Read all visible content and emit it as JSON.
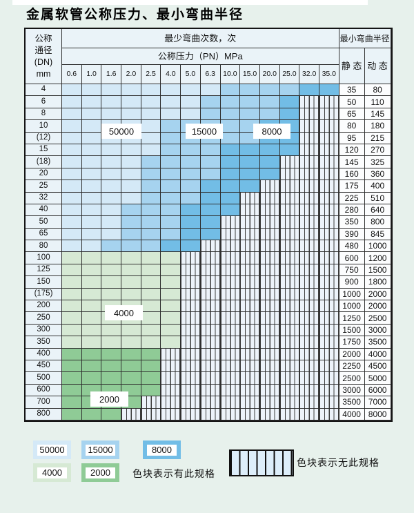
{
  "page": {
    "title": "金属软管公称压力、最小弯曲半径"
  },
  "colors": {
    "page_bg": "#e7f1ec",
    "header_bg": "#eaf3f8",
    "value_bg": "#fcfdfe",
    "border": "#2e2e2e",
    "hatch_bg": "#edf3fa",
    "bands": {
      "50000": "#d4e9f7",
      "15000": "#a6d3ef",
      "8000": "#72bde6",
      "4000": "#d6e9d4",
      "2000": "#8fcb96"
    }
  },
  "table": {
    "header": {
      "dn_lines": [
        "公称",
        "通径",
        "(DN)",
        "mm"
      ],
      "cycles_label": "最少弯曲次数，次",
      "pressure_label": "公称压力（PN）MPa",
      "radius_label": "最小弯曲半径",
      "static_label": "静 态",
      "dynamic_label": "动 态"
    }
  },
  "overlay_labels": {
    "b50000": "50000",
    "b15000": "15000",
    "b8000": "8000",
    "g4000": "4000",
    "g2000": "2000"
  },
  "legend": {
    "items": [
      {
        "label": "50000",
        "color": "#d4e9f7"
      },
      {
        "label": "15000",
        "color": "#a6d3ef"
      },
      {
        "label": "8000",
        "color": "#72bde6"
      },
      {
        "label": "4000",
        "color": "#d6e9d4"
      },
      {
        "label": "2000",
        "color": "#8fcb96"
      }
    ],
    "has_spec_text": "色块表示有此规格",
    "no_spec_text": "色块表示无此规格"
  },
  "chart_data": {
    "type": "table",
    "title": "金属软管公称压力、最小弯曲半径",
    "pressure_columns_MPa": [
      "0.6",
      "1.0",
      "1.6",
      "2.0",
      "2.5",
      "4.0",
      "5.0",
      "6.3",
      "10.0",
      "15.0",
      "20.0",
      "25.0",
      "32.0",
      "35.0"
    ],
    "cell_values_meaning": "minimum bend cycles spec per pressure column; none = 无此规格",
    "rows": [
      {
        "dn": "4",
        "cycles": [
          "50000",
          "50000",
          "50000",
          "50000",
          "50000",
          "50000",
          "50000",
          "50000",
          "15000",
          "15000",
          "15000",
          "15000",
          "8000",
          "8000"
        ],
        "static": "35",
        "dynamic": "80"
      },
      {
        "dn": "6",
        "cycles": [
          "50000",
          "50000",
          "50000",
          "50000",
          "50000",
          "50000",
          "50000",
          "15000",
          "15000",
          "15000",
          "15000",
          "8000",
          "none",
          "none"
        ],
        "static": "50",
        "dynamic": "110"
      },
      {
        "dn": "8",
        "cycles": [
          "50000",
          "50000",
          "50000",
          "50000",
          "50000",
          "50000",
          "50000",
          "15000",
          "15000",
          "15000",
          "15000",
          "8000",
          "none",
          "none"
        ],
        "static": "65",
        "dynamic": "145"
      },
      {
        "dn": "10",
        "cycles": [
          "50000",
          "50000",
          "50000",
          "50000",
          "50000",
          "15000",
          "15000",
          "15000",
          "15000",
          "15000",
          "8000",
          "8000",
          "none",
          "none"
        ],
        "static": "80",
        "dynamic": "180"
      },
      {
        "dn": "(12)",
        "cycles": [
          "50000",
          "50000",
          "50000",
          "50000",
          "50000",
          "15000",
          "15000",
          "15000",
          "15000",
          "15000",
          "8000",
          "8000",
          "none",
          "none"
        ],
        "static": "95",
        "dynamic": "215"
      },
      {
        "dn": "15",
        "cycles": [
          "50000",
          "50000",
          "50000",
          "50000",
          "50000",
          "15000",
          "15000",
          "15000",
          "8000",
          "8000",
          "8000",
          "8000",
          "none",
          "none"
        ],
        "static": "120",
        "dynamic": "270"
      },
      {
        "dn": "(18)",
        "cycles": [
          "50000",
          "50000",
          "50000",
          "50000",
          "15000",
          "15000",
          "15000",
          "15000",
          "8000",
          "8000",
          "8000",
          "none",
          "none",
          "none"
        ],
        "static": "145",
        "dynamic": "325"
      },
      {
        "dn": "20",
        "cycles": [
          "50000",
          "50000",
          "50000",
          "50000",
          "15000",
          "15000",
          "15000",
          "15000",
          "8000",
          "8000",
          "8000",
          "none",
          "none",
          "none"
        ],
        "static": "160",
        "dynamic": "360"
      },
      {
        "dn": "25",
        "cycles": [
          "50000",
          "50000",
          "50000",
          "50000",
          "15000",
          "15000",
          "15000",
          "8000",
          "8000",
          "8000",
          "none",
          "none",
          "none",
          "none"
        ],
        "static": "175",
        "dynamic": "400"
      },
      {
        "dn": "32",
        "cycles": [
          "50000",
          "50000",
          "50000",
          "50000",
          "15000",
          "15000",
          "15000",
          "8000",
          "8000",
          "none",
          "none",
          "none",
          "none",
          "none"
        ],
        "static": "225",
        "dynamic": "510"
      },
      {
        "dn": "40",
        "cycles": [
          "50000",
          "50000",
          "50000",
          "15000",
          "15000",
          "15000",
          "8000",
          "8000",
          "8000",
          "none",
          "none",
          "none",
          "none",
          "none"
        ],
        "static": "280",
        "dynamic": "640"
      },
      {
        "dn": "50",
        "cycles": [
          "50000",
          "50000",
          "50000",
          "15000",
          "15000",
          "15000",
          "8000",
          "8000",
          "none",
          "none",
          "none",
          "none",
          "none",
          "none"
        ],
        "static": "350",
        "dynamic": "800"
      },
      {
        "dn": "65",
        "cycles": [
          "50000",
          "50000",
          "50000",
          "15000",
          "15000",
          "15000",
          "8000",
          "8000",
          "none",
          "none",
          "none",
          "none",
          "none",
          "none"
        ],
        "static": "390",
        "dynamic": "845"
      },
      {
        "dn": "80",
        "cycles": [
          "50000",
          "50000",
          "15000",
          "15000",
          "15000",
          "8000",
          "8000",
          "none",
          "none",
          "none",
          "none",
          "none",
          "none",
          "none"
        ],
        "static": "480",
        "dynamic": "1000"
      },
      {
        "dn": "100",
        "cycles": [
          "4000",
          "4000",
          "4000",
          "4000",
          "4000",
          "4000",
          "none",
          "none",
          "none",
          "none",
          "none",
          "none",
          "none",
          "none"
        ],
        "static": "600",
        "dynamic": "1200"
      },
      {
        "dn": "125",
        "cycles": [
          "4000",
          "4000",
          "4000",
          "4000",
          "4000",
          "4000",
          "none",
          "none",
          "none",
          "none",
          "none",
          "none",
          "none",
          "none"
        ],
        "static": "750",
        "dynamic": "1500"
      },
      {
        "dn": "150",
        "cycles": [
          "4000",
          "4000",
          "4000",
          "4000",
          "4000",
          "4000",
          "none",
          "none",
          "none",
          "none",
          "none",
          "none",
          "none",
          "none"
        ],
        "static": "900",
        "dynamic": "1800"
      },
      {
        "dn": "(175)",
        "cycles": [
          "4000",
          "4000",
          "4000",
          "4000",
          "4000",
          "4000",
          "none",
          "none",
          "none",
          "none",
          "none",
          "none",
          "none",
          "none"
        ],
        "static": "1000",
        "dynamic": "2000"
      },
      {
        "dn": "200",
        "cycles": [
          "4000",
          "4000",
          "4000",
          "4000",
          "4000",
          "4000",
          "none",
          "none",
          "none",
          "none",
          "none",
          "none",
          "none",
          "none"
        ],
        "static": "1000",
        "dynamic": "2000"
      },
      {
        "dn": "250",
        "cycles": [
          "4000",
          "4000",
          "4000",
          "4000",
          "4000",
          "4000",
          "none",
          "none",
          "none",
          "none",
          "none",
          "none",
          "none",
          "none"
        ],
        "static": "1250",
        "dynamic": "2500"
      },
      {
        "dn": "300",
        "cycles": [
          "4000",
          "4000",
          "4000",
          "4000",
          "4000",
          "4000",
          "none",
          "none",
          "none",
          "none",
          "none",
          "none",
          "none",
          "none"
        ],
        "static": "1500",
        "dynamic": "3000"
      },
      {
        "dn": "350",
        "cycles": [
          "4000",
          "4000",
          "4000",
          "4000",
          "4000",
          "4000",
          "none",
          "none",
          "none",
          "none",
          "none",
          "none",
          "none",
          "none"
        ],
        "static": "1750",
        "dynamic": "3500"
      },
      {
        "dn": "400",
        "cycles": [
          "2000",
          "2000",
          "2000",
          "2000",
          "2000",
          "none",
          "none",
          "none",
          "none",
          "none",
          "none",
          "none",
          "none",
          "none"
        ],
        "static": "2000",
        "dynamic": "4000"
      },
      {
        "dn": "450",
        "cycles": [
          "2000",
          "2000",
          "2000",
          "2000",
          "2000",
          "none",
          "none",
          "none",
          "none",
          "none",
          "none",
          "none",
          "none",
          "none"
        ],
        "static": "2250",
        "dynamic": "4500"
      },
      {
        "dn": "500",
        "cycles": [
          "2000",
          "2000",
          "2000",
          "2000",
          "2000",
          "none",
          "none",
          "none",
          "none",
          "none",
          "none",
          "none",
          "none",
          "none"
        ],
        "static": "2500",
        "dynamic": "5000"
      },
      {
        "dn": "600",
        "cycles": [
          "2000",
          "2000",
          "2000",
          "2000",
          "2000",
          "none",
          "none",
          "none",
          "none",
          "none",
          "none",
          "none",
          "none",
          "none"
        ],
        "static": "3000",
        "dynamic": "6000"
      },
      {
        "dn": "700",
        "cycles": [
          "2000",
          "2000",
          "2000",
          "2000",
          "none",
          "none",
          "none",
          "none",
          "none",
          "none",
          "none",
          "none",
          "none",
          "none"
        ],
        "static": "3500",
        "dynamic": "7000"
      },
      {
        "dn": "800",
        "cycles": [
          "2000",
          "2000",
          "2000",
          "none",
          "none",
          "none",
          "none",
          "none",
          "none",
          "none",
          "none",
          "none",
          "none",
          "none"
        ],
        "static": "4000",
        "dynamic": "8000"
      }
    ]
  }
}
